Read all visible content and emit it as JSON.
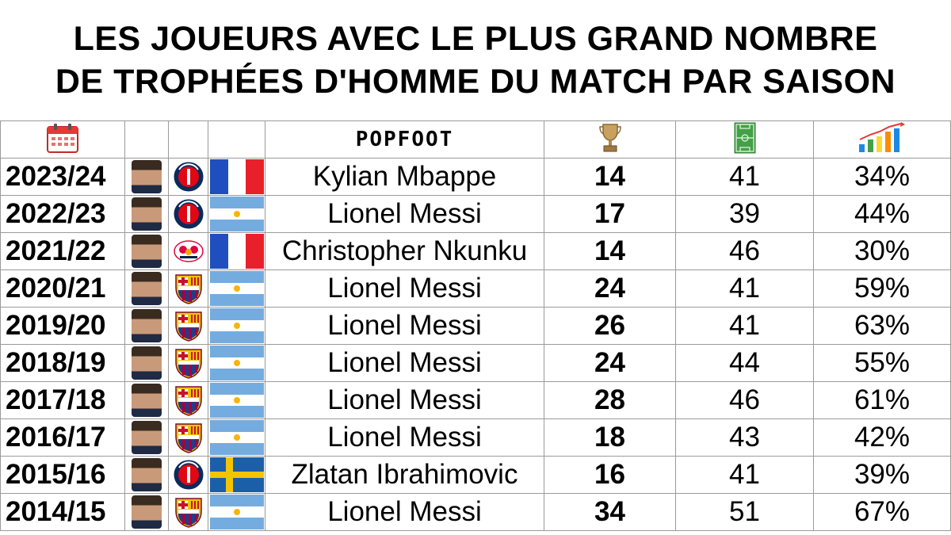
{
  "title": {
    "line1": "LES JOUEURS AVEC LE PLUS GRAND NOMBRE",
    "line2": "DE TROPHÉES D'HOMME DU MATCH PAR SAISON"
  },
  "header": {
    "logo_text": "POPFOOT",
    "icons": [
      "calendar-icon",
      "trophy-icon",
      "pitch-icon",
      "bar-chart-icon"
    ]
  },
  "rows": [
    {
      "season": "2023/24",
      "player": "Kylian Mbappe",
      "club": "psg",
      "flag": "france",
      "motm": "14",
      "matches": "41",
      "pct": "34%"
    },
    {
      "season": "2022/23",
      "player": "Lionel Messi",
      "club": "psg",
      "flag": "argentina",
      "motm": "17",
      "matches": "39",
      "pct": "44%"
    },
    {
      "season": "2021/22",
      "player": "Christopher Nkunku",
      "club": "leipzig",
      "flag": "france",
      "motm": "14",
      "matches": "46",
      "pct": "30%"
    },
    {
      "season": "2020/21",
      "player": "Lionel Messi",
      "club": "barcelona",
      "flag": "argentina",
      "motm": "24",
      "matches": "41",
      "pct": "59%"
    },
    {
      "season": "2019/20",
      "player": "Lionel Messi",
      "club": "barcelona",
      "flag": "argentina",
      "motm": "26",
      "matches": "41",
      "pct": "63%"
    },
    {
      "season": "2018/19",
      "player": "Lionel Messi",
      "club": "barcelona",
      "flag": "argentina",
      "motm": "24",
      "matches": "44",
      "pct": "55%"
    },
    {
      "season": "2017/18",
      "player": "Lionel Messi",
      "club": "barcelona",
      "flag": "argentina",
      "motm": "28",
      "matches": "46",
      "pct": "61%"
    },
    {
      "season": "2016/17",
      "player": "Lionel Messi",
      "club": "barcelona",
      "flag": "argentina",
      "motm": "18",
      "matches": "43",
      "pct": "42%"
    },
    {
      "season": "2015/16",
      "player": "Zlatan Ibrahimovic",
      "club": "psg",
      "flag": "sweden",
      "motm": "16",
      "matches": "41",
      "pct": "39%"
    },
    {
      "season": "2014/15",
      "player": "Lionel Messi",
      "club": "barcelona",
      "flag": "argentina",
      "motm": "34",
      "matches": "51",
      "pct": "67%"
    }
  ]
}
